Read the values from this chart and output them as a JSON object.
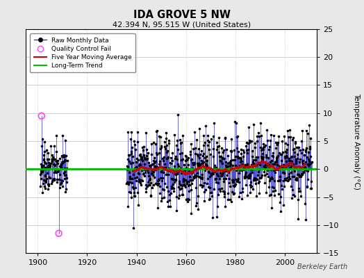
{
  "title": "IDA GROVE 5 NW",
  "subtitle": "42.394 N, 95.515 W (United States)",
  "ylabel": "Temperature Anomaly (°C)",
  "watermark": "Berkeley Earth",
  "xlim": [
    1895,
    2013
  ],
  "ylim": [
    -15,
    25
  ],
  "yticks": [
    -15,
    -10,
    -5,
    0,
    5,
    10,
    15,
    20,
    25
  ],
  "xticks": [
    1900,
    1920,
    1940,
    1960,
    1980,
    2000
  ],
  "bg_color": "#e8e8e8",
  "plot_bg_color": "#ffffff",
  "line_color": "#3333cc",
  "marker_color": "#000000",
  "moving_avg_color": "#cc0000",
  "trend_color": "#00bb00",
  "qc_fail_color": "#ff44ff",
  "grid_color": "#bbbbbb",
  "seed": 42,
  "early_start": 1901,
  "early_end": 1912,
  "early_n": 130,
  "main_start": 1936,
  "main_end": 2011,
  "main_n": 900,
  "qc_high_year": 1901.5,
  "qc_high_val": 9.5,
  "qc_low_year": 1908.5,
  "qc_low_val": -11.5
}
